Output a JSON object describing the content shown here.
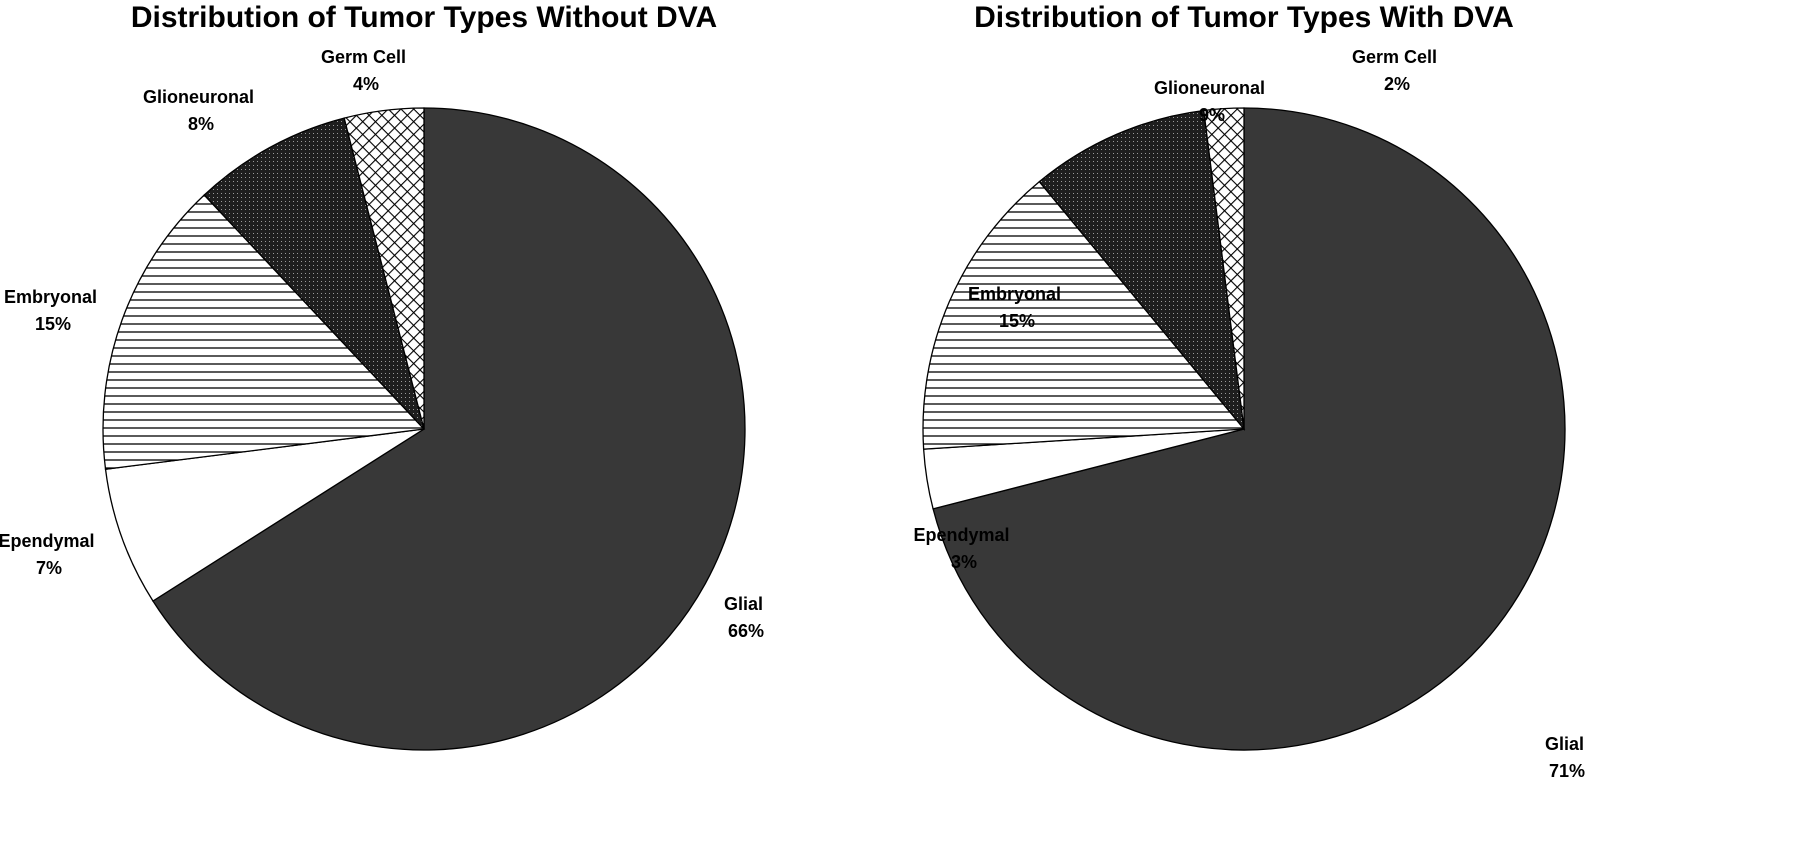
{
  "chart_data": [
    {
      "type": "pie",
      "title": "Distribution of Tumor Types Without DVA",
      "slices": [
        {
          "name": "Glial",
          "value": 66,
          "label": "66%",
          "pattern": "solid-dark"
        },
        {
          "name": "Ependymal",
          "value": 7,
          "label": "7%",
          "pattern": "white"
        },
        {
          "name": "Embryonal",
          "value": 15,
          "label": "15%",
          "pattern": "horizontal-lines"
        },
        {
          "name": "Glioneuronal",
          "value": 8,
          "label": "8%",
          "pattern": "dark-dots"
        },
        {
          "name": "Germ Cell",
          "value": 4,
          "label": "4%",
          "pattern": "crosshatch"
        }
      ]
    },
    {
      "type": "pie",
      "title": "Distribution of Tumor Types With DVA",
      "slices": [
        {
          "name": "Glial",
          "value": 71,
          "label": "71%",
          "pattern": "solid-dark"
        },
        {
          "name": "Ependymal",
          "value": 3,
          "label": "3%",
          "pattern": "white"
        },
        {
          "name": "Embryonal",
          "value": 15,
          "label": "15%",
          "pattern": "horizontal-lines"
        },
        {
          "name": "Glioneuronal",
          "value": 9,
          "label": "9%",
          "pattern": "dark-dots"
        },
        {
          "name": "Germ Cell",
          "value": 2,
          "label": "2%",
          "pattern": "crosshatch"
        }
      ]
    }
  ],
  "colors": {
    "solid-dark": "#383838",
    "white": "#ffffff",
    "line": "#000000",
    "dots-bg": "#1e1e1e"
  }
}
